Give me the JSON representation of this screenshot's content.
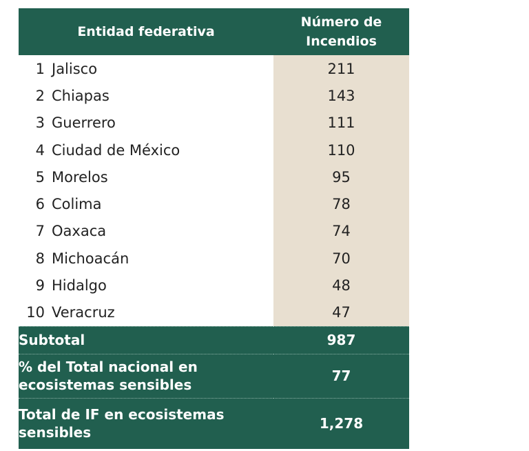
{
  "table": {
    "headers": [
      "Entidad federativa",
      "Número de Incendios"
    ],
    "rows": [
      {
        "rank": "1",
        "name": "Jalisco",
        "value": "211"
      },
      {
        "rank": "2",
        "name": "Chiapas",
        "value": "143"
      },
      {
        "rank": "3",
        "name": "Guerrero",
        "value": "111"
      },
      {
        "rank": "4",
        "name": "Ciudad de México",
        "value": "110"
      },
      {
        "rank": "5",
        "name": "Morelos",
        "value": "95"
      },
      {
        "rank": "6",
        "name": "Colima",
        "value": "78"
      },
      {
        "rank": "7",
        "name": "Oaxaca",
        "value": "74"
      },
      {
        "rank": "8",
        "name": "Michoacán",
        "value": "70"
      },
      {
        "rank": "9",
        "name": "Hidalgo",
        "value": "48"
      },
      {
        "rank": "10",
        "name": "Veracruz",
        "value": "47"
      }
    ],
    "footer": [
      {
        "label_lines": [
          "Subtotal"
        ],
        "value": "987"
      },
      {
        "label_lines": [
          "% del Total nacional en",
          "ecosistemas sensibles"
        ],
        "value": "77"
      },
      {
        "label_lines": [
          "Total de IF en ecosistemas",
          "sensibles"
        ],
        "value": "1,278"
      }
    ]
  },
  "colors": {
    "header_green": "#215f4f",
    "value_column_beige": "#e8dfd0"
  }
}
